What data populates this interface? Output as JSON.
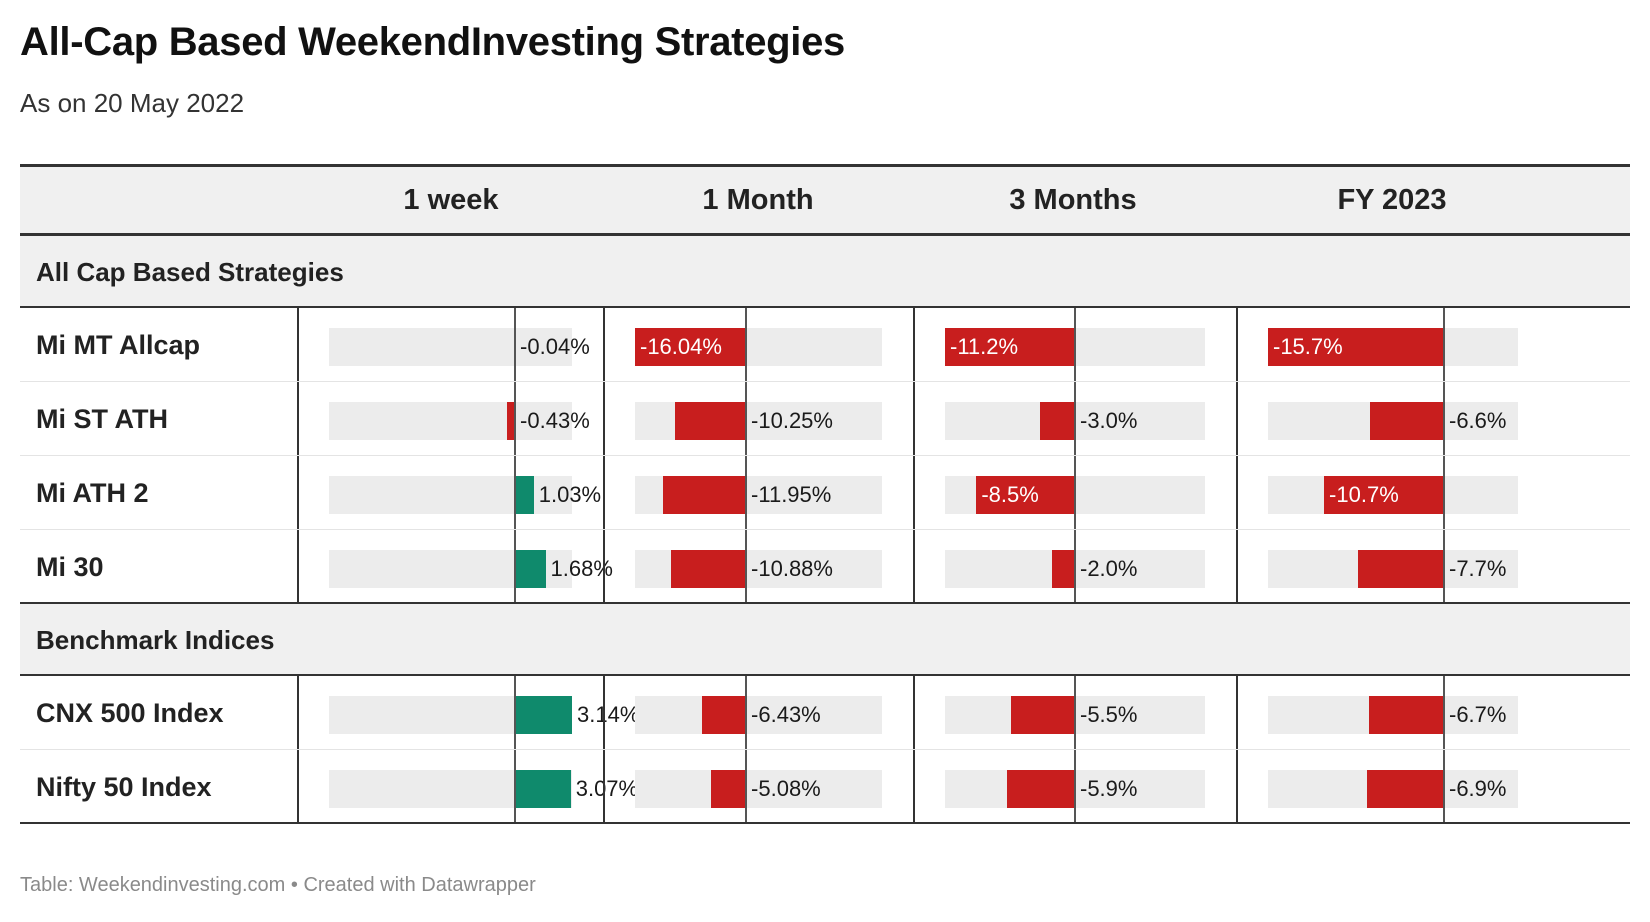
{
  "header": {
    "title": "All-Cap Based WeekendInvesting Strategies",
    "subtitle": "As on 20 May 2022"
  },
  "footer": "Table: Weekendinvesting.com • Created with Datawrapper",
  "colors": {
    "positive": "#0f8a6c",
    "negative": "#c81e1e",
    "track": "#ececec",
    "header_bg": "#f0f0f0"
  },
  "chart_data": {
    "type": "table",
    "columns": [
      "1 week",
      "1 Month",
      "3 Months",
      "FY 2023"
    ],
    "groups": [
      {
        "label": "All Cap Based Strategies",
        "rows": [
          {
            "name": "Mi MT Allcap",
            "values": [
              -0.04,
              -16.04,
              -11.2,
              -15.7
            ],
            "labels": [
              "-0.04%",
              "-16.04%",
              "-11.2%",
              "-15.7%"
            ]
          },
          {
            "name": "Mi ST ATH",
            "values": [
              -0.43,
              -10.25,
              -3.0,
              -6.6
            ],
            "labels": [
              "-0.43%",
              "-10.25%",
              "-3.0%",
              "-6.6%"
            ]
          },
          {
            "name": "Mi ATH 2",
            "values": [
              1.03,
              -11.95,
              -8.5,
              -10.7
            ],
            "labels": [
              "1.03%",
              "-11.95%",
              "-8.5%",
              "-10.7%"
            ]
          },
          {
            "name": "Mi 30",
            "values": [
              1.68,
              -10.88,
              -2.0,
              -7.7
            ],
            "labels": [
              "1.68%",
              "-10.88%",
              "-2.0%",
              "-7.7%"
            ]
          }
        ]
      },
      {
        "label": "Benchmark Indices",
        "rows": [
          {
            "name": "CNX 500 Index",
            "values": [
              3.14,
              -6.43,
              -5.5,
              -6.7
            ],
            "labels": [
              "3.14%",
              "-6.43%",
              "-5.5%",
              "-6.7%"
            ]
          },
          {
            "name": "Nifty 50 Index",
            "values": [
              3.07,
              -5.08,
              -5.9,
              -6.9
            ],
            "labels": [
              "3.07%",
              "-5.08%",
              "-5.9%",
              "-6.9%"
            ]
          }
        ]
      }
    ],
    "column_ranges": [
      [
        -10.26,
        3.14
      ],
      [
        -16.04,
        19.64
      ],
      [
        -11.2,
        11.2
      ],
      [
        -15.7,
        6.6
      ]
    ]
  }
}
